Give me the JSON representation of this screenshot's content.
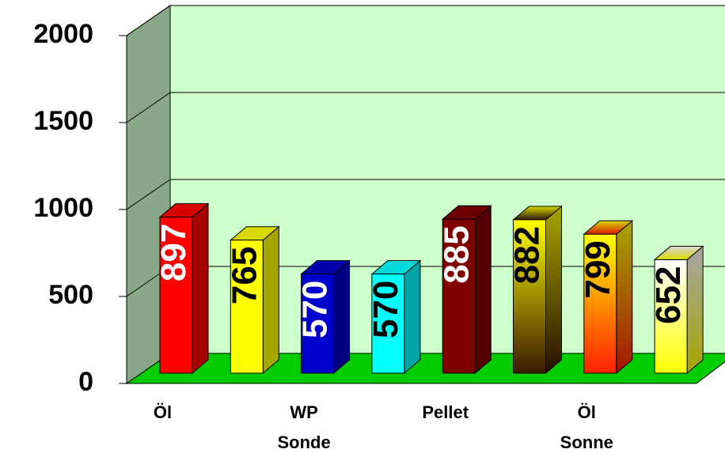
{
  "chart_data": {
    "type": "bar3d",
    "categories": [
      "Öl",
      null,
      "WP\nSonde",
      null,
      "Pellet",
      null,
      "Öl\nSonne",
      null
    ],
    "values": [
      897,
      765,
      570,
      570,
      885,
      882,
      799,
      652
    ],
    "colors": [
      "#ff0000",
      "#ffff00",
      "#0000cc",
      "#00ffff",
      "#800000",
      [
        "#ffff00",
        "#3a1a00"
      ],
      [
        "#ffff00",
        "#ff2000"
      ],
      [
        "#ffffff",
        "#ffff00"
      ]
    ],
    "label_colors": [
      "#ffffff",
      "#000000",
      "#ffffff",
      "#000000",
      "#ffffff",
      "#000000",
      "#000000",
      "#000000"
    ],
    "ylim": [
      0,
      2000
    ],
    "yticks": [
      0,
      500,
      1000,
      1500,
      2000
    ],
    "grid": true
  }
}
